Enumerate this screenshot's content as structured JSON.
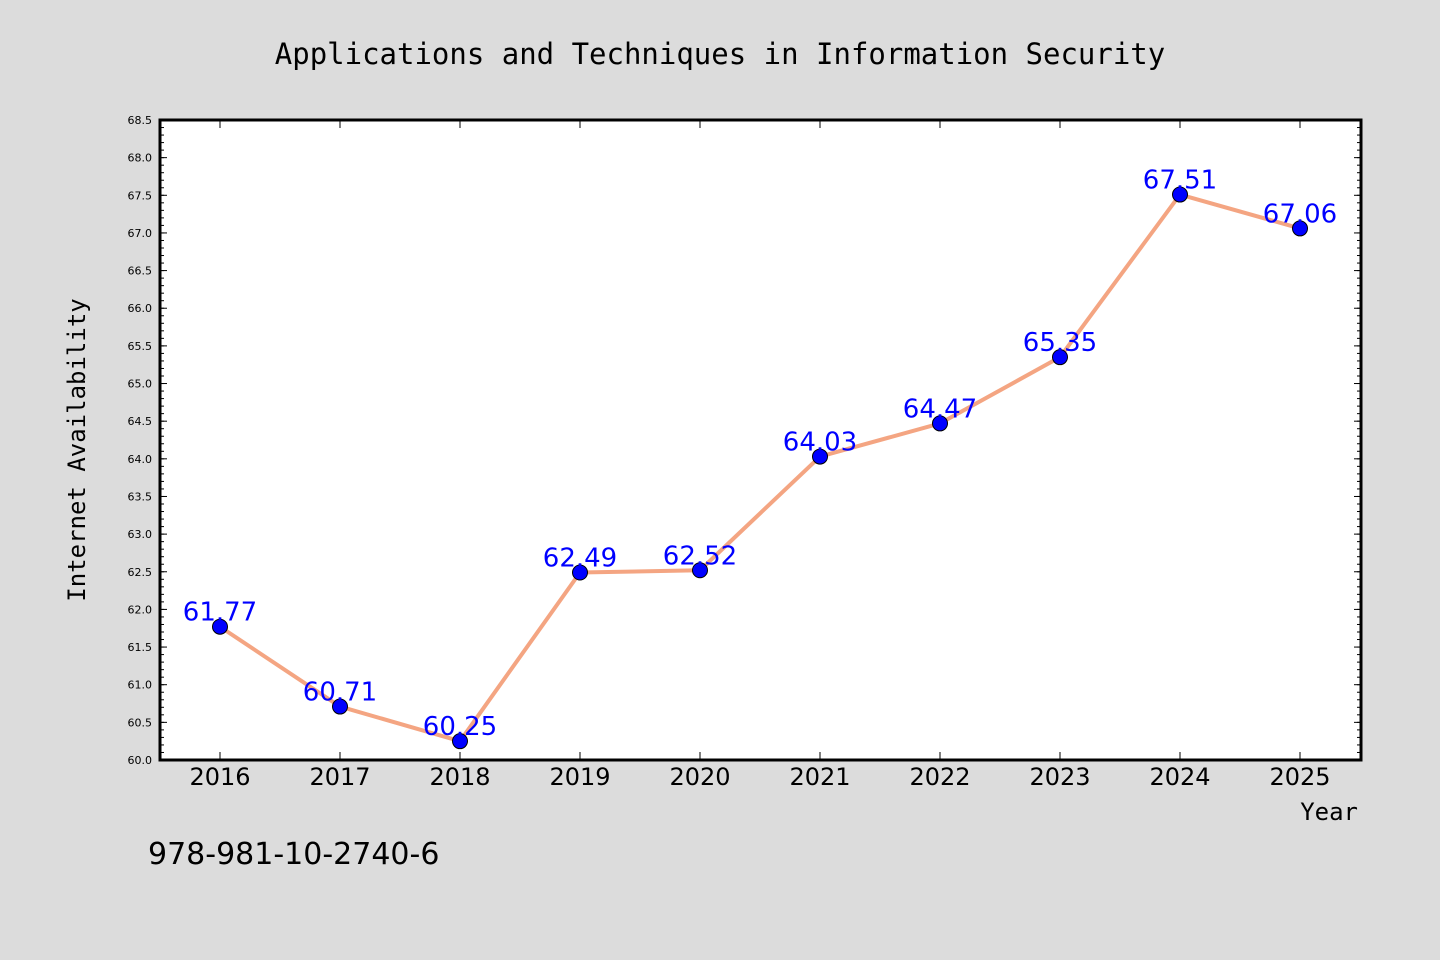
{
  "chart_data": {
    "type": "line",
    "title": "Applications and Techniques in Information Security",
    "xlabel": "Year",
    "ylabel": "Internet Availability",
    "categories": [
      "2016",
      "2017",
      "2018",
      "2019",
      "2020",
      "2021",
      "2022",
      "2023",
      "2024",
      "2025"
    ],
    "series": [
      {
        "values": [
          61.77,
          60.71,
          60.25,
          62.49,
          62.52,
          64.03,
          64.47,
          65.35,
          67.51,
          67.06
        ],
        "line_color": "#f4a582",
        "marker_color": "#0000ff"
      }
    ],
    "data_labels": [
      "61.77",
      "60.71",
      "60.25",
      "62.49",
      "62.52",
      "64.03",
      "64.47",
      "65.35",
      "67.51",
      "67.06"
    ],
    "data_label_color": "#0000ff",
    "ylim": [
      60.0,
      68.5
    ],
    "yticks": [
      "60.0",
      "60.5",
      "61.0",
      "61.5",
      "62.0",
      "62.5",
      "63.0",
      "63.5",
      "64.0",
      "64.5",
      "65.0",
      "65.5",
      "66.0",
      "66.5",
      "67.0",
      "67.5",
      "68.0",
      "68.5"
    ],
    "grid": false,
    "background_color": "#dcdcdc",
    "plot_background_color": "#ffffff"
  },
  "footer": {
    "isbn": "978-981-10-2740-6"
  }
}
